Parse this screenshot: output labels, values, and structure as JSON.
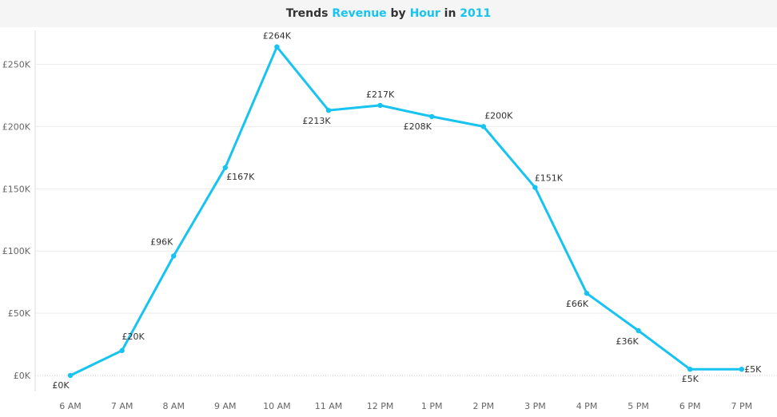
{
  "title": {
    "part1": "Trends ",
    "measure": "Revenue",
    "part2": " by ",
    "dimension": "Hour",
    "part3": " in ",
    "year": "2011"
  },
  "colors": {
    "line": "#17c3f0",
    "highlight": "#17c3f0",
    "grid": "#ececec"
  },
  "chart_data": {
    "type": "line",
    "title": "Trends Revenue by Hour in 2011",
    "xlabel": "",
    "ylabel": "",
    "categories": [
      "6 AM",
      "7 AM",
      "8 AM",
      "9 AM",
      "10 AM",
      "11 AM",
      "12 PM",
      "1 PM",
      "2 PM",
      "3 PM",
      "4 PM",
      "5 PM",
      "6 PM",
      "7 PM"
    ],
    "values": [
      0,
      20,
      96,
      167,
      264,
      213,
      217,
      208,
      200,
      151,
      66,
      36,
      5,
      5
    ],
    "data_labels": [
      "£0K",
      "£20K",
      "£96K",
      "£167K",
      "£264K",
      "£213K",
      "£217K",
      "£208K",
      "£200K",
      "£151K",
      "£66K",
      "£36K",
      "£5K",
      "£5K"
    ],
    "y_ticks": [
      0,
      50,
      100,
      150,
      200,
      250
    ],
    "y_tick_labels": [
      "£0K",
      "£50K",
      "£100K",
      "£150K",
      "£200K",
      "£250K"
    ],
    "ylim": [
      0,
      280
    ],
    "units": "£K",
    "grid": true,
    "legend": "none"
  }
}
